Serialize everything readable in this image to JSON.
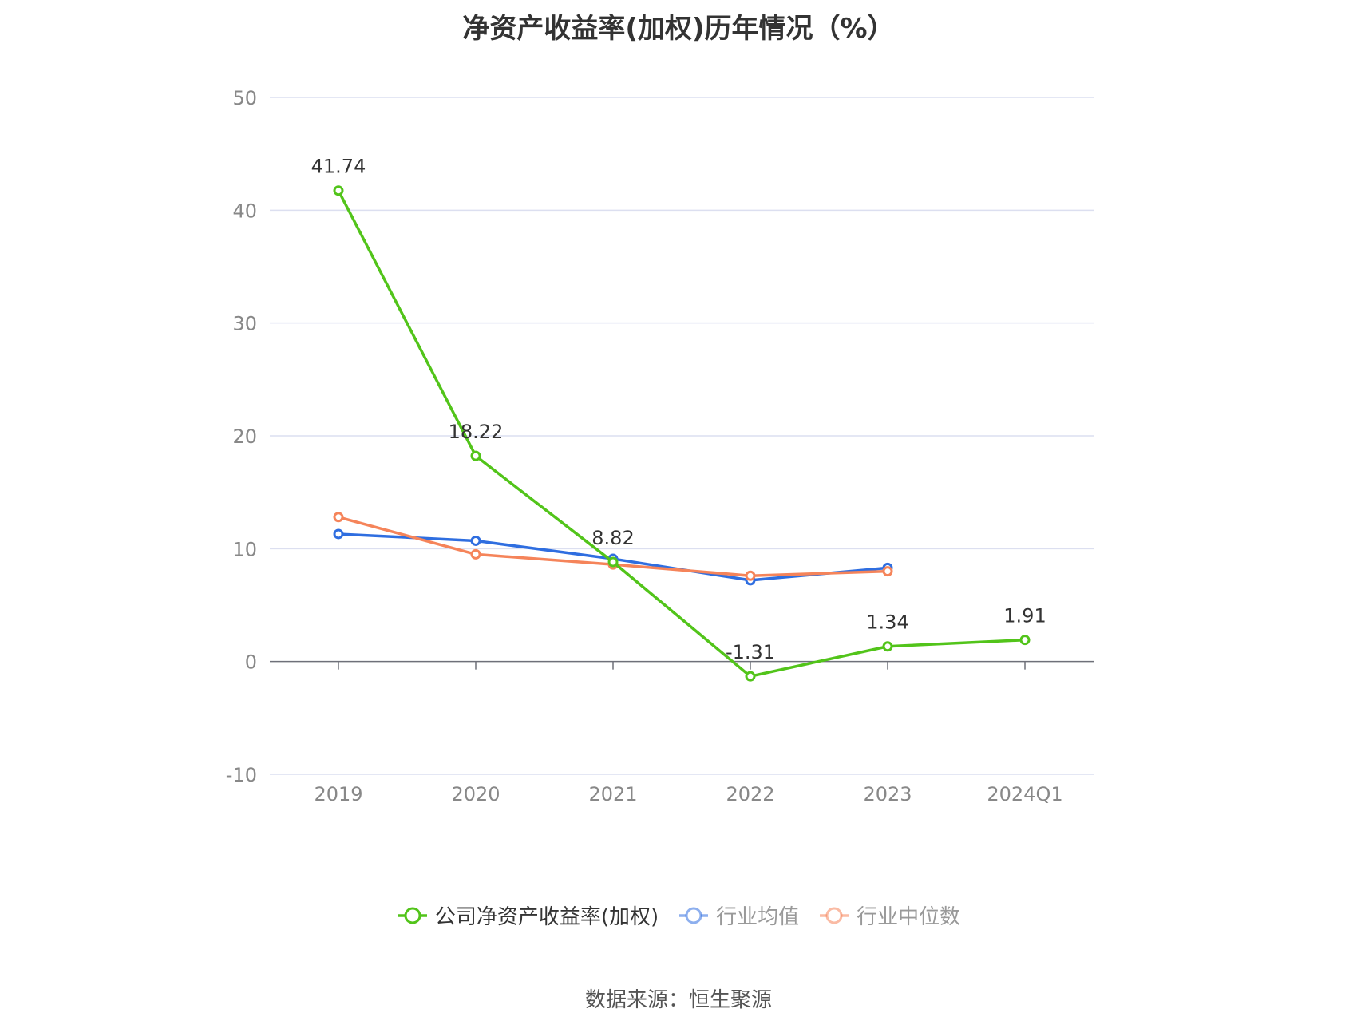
{
  "chart_data": {
    "type": "line",
    "title": "净资产收益率(加权)历年情况（%）",
    "categories": [
      "2019",
      "2020",
      "2021",
      "2022",
      "2023",
      "2024Q1"
    ],
    "ylim": [
      -10,
      50
    ],
    "yticks": [
      -10,
      0,
      10,
      20,
      30,
      40,
      50
    ],
    "grid": true,
    "legend_position": "bottom",
    "series": [
      {
        "name": "公司净资产收益率(加权)",
        "color": "#52c41a",
        "values": [
          41.74,
          18.22,
          8.82,
          -1.31,
          1.34,
          1.91
        ],
        "labels": [
          "41.74",
          "18.22",
          "8.82",
          "-1.31",
          "1.34",
          "1.91"
        ],
        "show_labels": true
      },
      {
        "name": "行业均值",
        "color": "#2f6ee0",
        "values": [
          11.3,
          10.7,
          9.1,
          7.2,
          8.3,
          null
        ],
        "show_labels": false
      },
      {
        "name": "行业中位数",
        "color": "#f5845a",
        "values": [
          12.8,
          9.5,
          8.6,
          7.6,
          8.0,
          null
        ],
        "show_labels": false
      }
    ]
  },
  "source": "数据来源：恒生聚源"
}
